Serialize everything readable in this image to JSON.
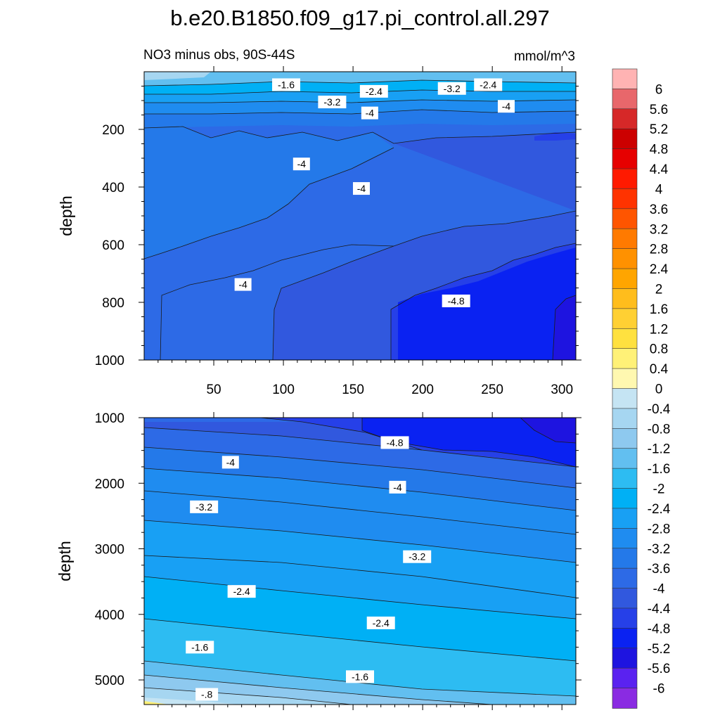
{
  "chart_data": [
    {
      "type": "heatmap",
      "title": "b.e20.B1850.f09_g17.pi_control.all.297",
      "subtitle_left": "NO3 minus obs, 90S-44S",
      "subtitle_right": "mmol/m^3",
      "ylabel": "depth",
      "xlabel": "",
      "x_ticks": [
        50,
        100,
        150,
        200,
        250,
        300
      ],
      "y_ticks": [
        200,
        400,
        600,
        800,
        1000
      ],
      "xlim": [
        0,
        310
      ],
      "ylim": [
        0,
        1000
      ],
      "y_reversed": true,
      "contour_labels": [
        {
          "text": "-1.6",
          "x": 102,
          "y": 45
        },
        {
          "text": "-2.4",
          "x": 165,
          "y": 68
        },
        {
          "text": "-3.2",
          "x": 135,
          "y": 105
        },
        {
          "text": "-3.2",
          "x": 221,
          "y": 58
        },
        {
          "text": "-2.4",
          "x": 247,
          "y": 45
        },
        {
          "text": "-4",
          "x": 162,
          "y": 143
        },
        {
          "text": "-4",
          "x": 260,
          "y": 120
        },
        {
          "text": "-4",
          "x": 113,
          "y": 320
        },
        {
          "text": "-4",
          "x": 156,
          "y": 405
        },
        {
          "text": "-4",
          "x": 71,
          "y": 738
        },
        {
          "text": "-4.8",
          "x": 224,
          "y": 795
        }
      ]
    },
    {
      "type": "heatmap",
      "ylabel": "depth",
      "y_ticks": [
        1000,
        2000,
        3000,
        4000,
        5000
      ],
      "ylim": [
        1000,
        5375
      ],
      "xlim": [
        0,
        310
      ],
      "y_reversed": true,
      "contour_labels": [
        {
          "text": "-4.8",
          "x": 180,
          "y": 1380
        },
        {
          "text": "-4",
          "x": 62,
          "y": 1680
        },
        {
          "text": "-4",
          "x": 182,
          "y": 2060
        },
        {
          "text": "-3.2",
          "x": 43,
          "y": 2360
        },
        {
          "text": "-3.2",
          "x": 196,
          "y": 3120
        },
        {
          "text": "-2.4",
          "x": 70,
          "y": 3650
        },
        {
          "text": "-2.4",
          "x": 170,
          "y": 4130
        },
        {
          "text": "-1.6",
          "x": 40,
          "y": 4500
        },
        {
          "text": "-1.6",
          "x": 155,
          "y": 4950
        },
        {
          "text": "-.8",
          "x": 45,
          "y": 5220
        }
      ]
    }
  ],
  "colorbar": {
    "labels": [
      "6",
      "5.6",
      "5.2",
      "4.8",
      "4.4",
      "4",
      "3.6",
      "3.2",
      "2.8",
      "2.4",
      "2",
      "1.6",
      "1.2",
      "0.8",
      "0.4",
      "0",
      "-0.4",
      "-0.8",
      "-1.2",
      "-1.6",
      "-2",
      "-2.4",
      "-2.8",
      "-3.2",
      "-3.6",
      "-4",
      "-4.4",
      "-4.8",
      "-5.2",
      "-5.6",
      "-6"
    ],
    "colors": [
      "#ffb3b3",
      "#e8676b",
      "#d62828",
      "#cc0000",
      "#e60000",
      "#ff1a00",
      "#ff3300",
      "#ff5500",
      "#ff7a00",
      "#ff9100",
      "#ffa500",
      "#ffbd1c",
      "#ffd033",
      "#ffe13f",
      "#fff177",
      "#fff8b0",
      "#c5e4f3",
      "#a6d6f1",
      "#8ec9ef",
      "#62bff0",
      "#2dbcf2",
      "#00b0f5",
      "#18a0f4",
      "#1f8cf0",
      "#2479e9",
      "#2d6ae6",
      "#3158de",
      "#2640e8",
      "#0a22f2",
      "#1e14e0",
      "#5a22f0",
      "#8a2be2"
    ]
  }
}
